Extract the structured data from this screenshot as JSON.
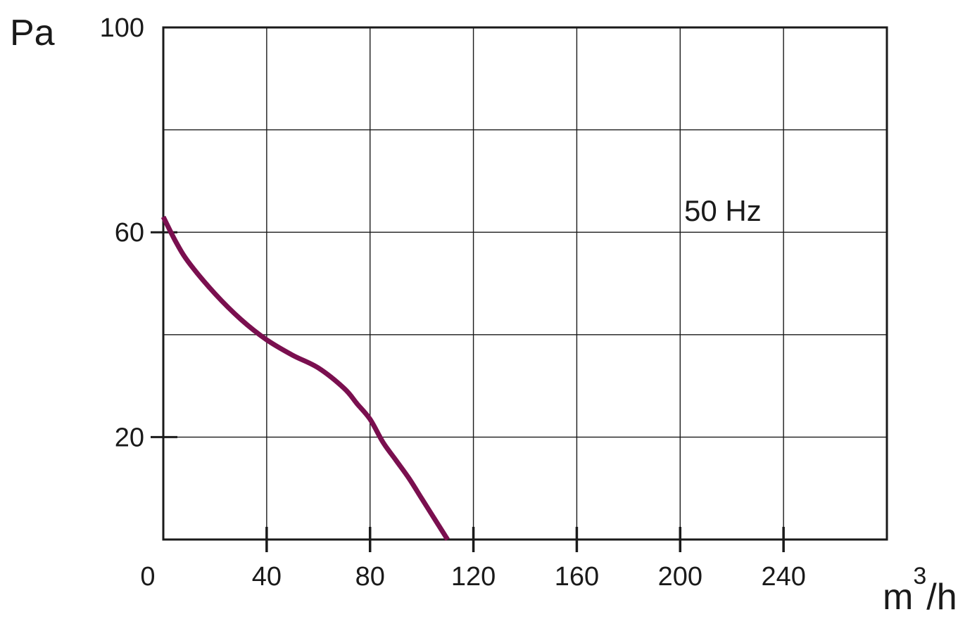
{
  "chart_data": {
    "type": "line",
    "ylabel": "Pa",
    "xlabel_base": "m",
    "xlabel_sup": "3",
    "xlabel_rest": "/h",
    "xlim": [
      0,
      280
    ],
    "ylim": [
      0,
      100
    ],
    "x_ticks": [
      "0",
      "40",
      "80",
      "120",
      "160",
      "200",
      "240"
    ],
    "x_tick_values": [
      0,
      40,
      80,
      120,
      160,
      200,
      240
    ],
    "y_ticks": [
      "100",
      "60",
      "20"
    ],
    "y_tick_values": [
      100,
      60,
      20
    ],
    "x_grid": [
      40,
      80,
      120,
      160,
      200,
      240
    ],
    "y_grid": [
      20,
      40,
      60,
      80
    ],
    "grid": true,
    "series": [
      {
        "name": "50 Hz",
        "color": "#7a0f4f",
        "x": [
          0,
          5,
          10,
          20,
          30,
          40,
          50,
          60,
          70,
          75,
          80,
          85,
          90,
          95,
          100,
          105,
          110
        ],
        "y": [
          63,
          58,
          54,
          48,
          43,
          39,
          36,
          33.5,
          29.5,
          26.5,
          23.5,
          19,
          15.5,
          12,
          8,
          4,
          0
        ]
      }
    ]
  }
}
